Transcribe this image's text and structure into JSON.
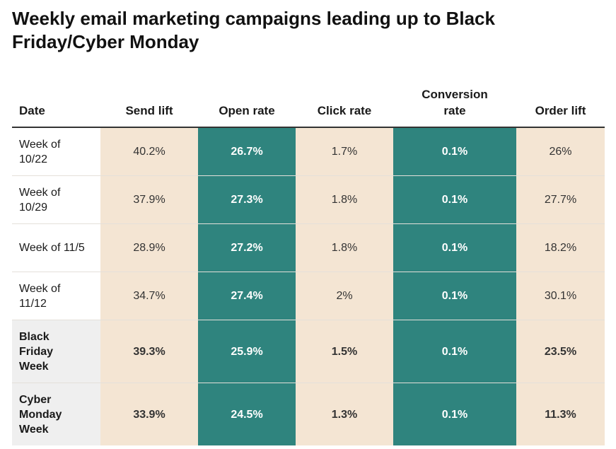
{
  "chart_data": {
    "type": "table",
    "title": "Weekly email marketing campaigns leading up to Black Friday/Cyber Monday",
    "columns": [
      "Date",
      "Send lift",
      "Open rate",
      "Click rate",
      "Conversion rate",
      "Order lift"
    ],
    "rows": [
      {
        "date": "Week of 10/22",
        "send_lift": "40.2%",
        "open_rate": "26.7%",
        "click_rate": "1.7%",
        "conversion_rate": "0.1%",
        "order_lift": "26%"
      },
      {
        "date": "Week of 10/29",
        "send_lift": "37.9%",
        "open_rate": "27.3%",
        "click_rate": "1.8%",
        "conversion_rate": "0.1%",
        "order_lift": "27.7%"
      },
      {
        "date": "Week of 11/5",
        "send_lift": "28.9%",
        "open_rate": "27.2%",
        "click_rate": "1.8%",
        "conversion_rate": "0.1%",
        "order_lift": "18.2%"
      },
      {
        "date": "Week of 11/12",
        "send_lift": "34.7%",
        "open_rate": "27.4%",
        "click_rate": "2%",
        "conversion_rate": "0.1%",
        "order_lift": "30.1%"
      },
      {
        "date": "Black Friday Week",
        "send_lift": "39.3%",
        "open_rate": "25.9%",
        "click_rate": "1.5%",
        "conversion_rate": "0.1%",
        "order_lift": "23.5%",
        "emphasis": true
      },
      {
        "date": "Cyber Monday Week",
        "send_lift": "33.9%",
        "open_rate": "24.5%",
        "click_rate": "1.3%",
        "conversion_rate": "0.1%",
        "order_lift": "11.3%",
        "emphasis": true
      }
    ],
    "colors": {
      "beige": "#f4e5d3",
      "teal": "#2f847e",
      "highlight_date": "#efefef"
    }
  }
}
